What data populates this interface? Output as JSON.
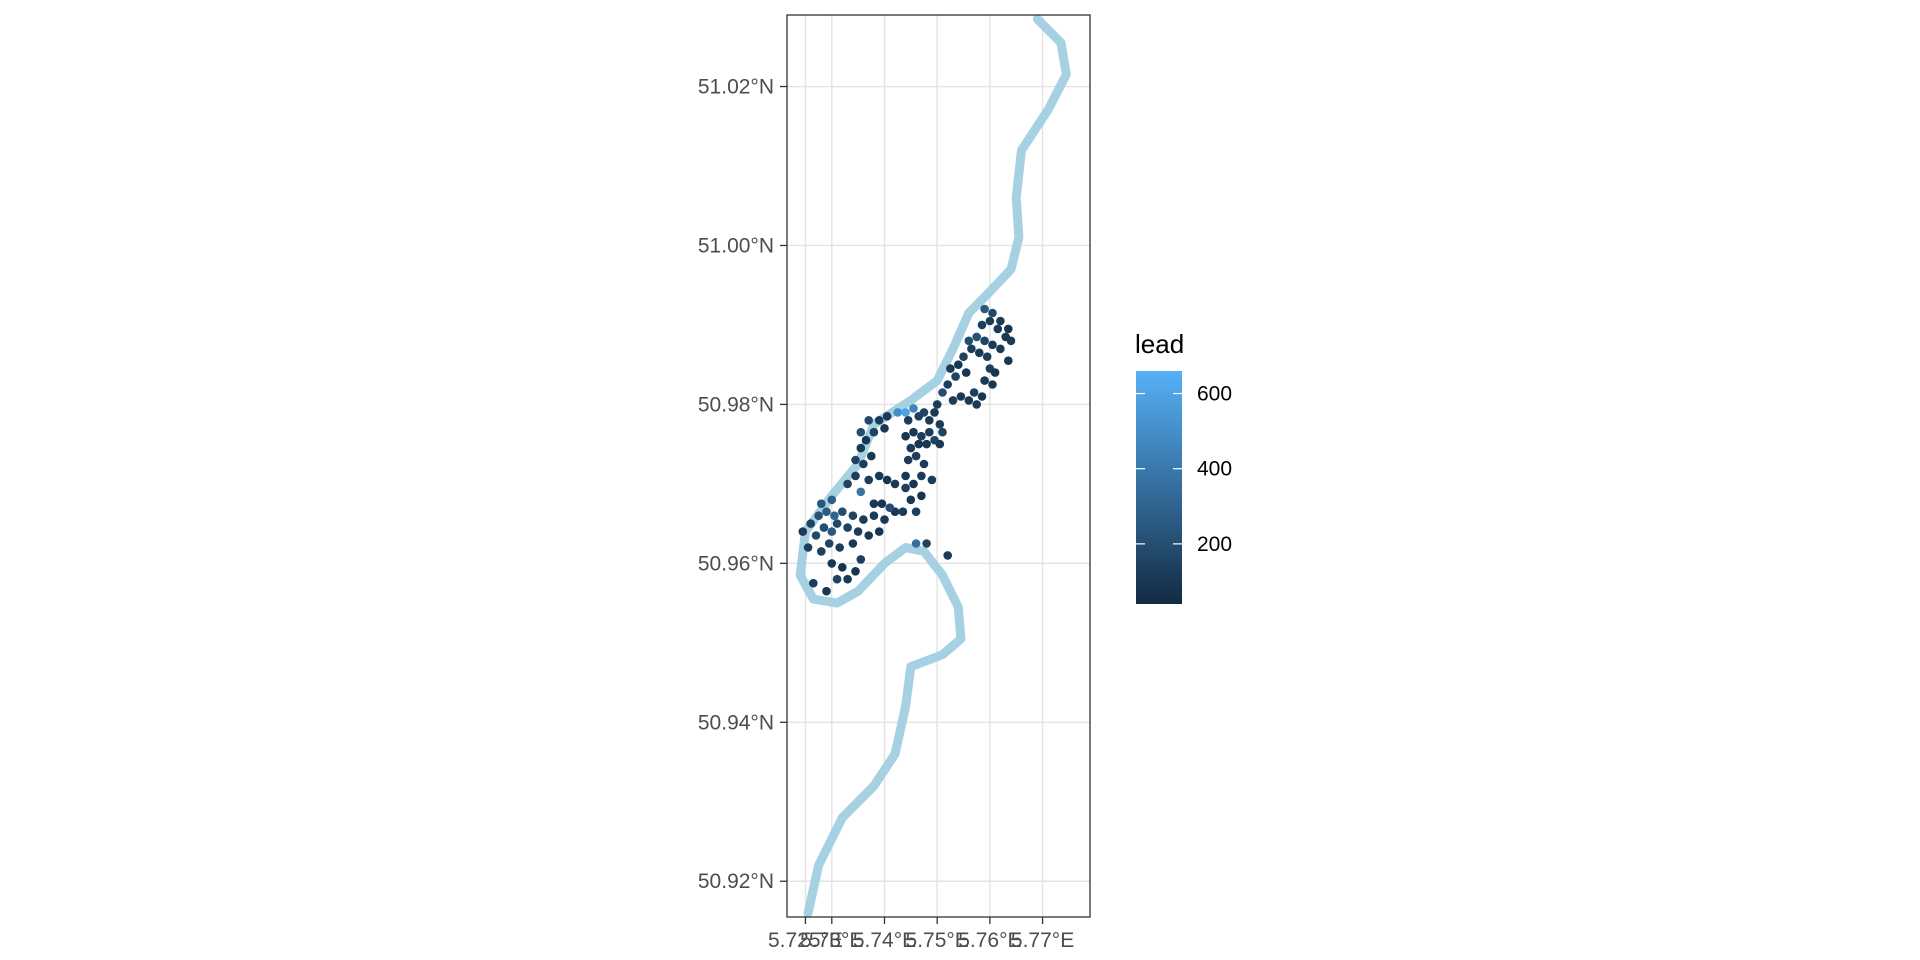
{
  "chart_data": {
    "type": "scatter",
    "title": "",
    "xlabel": "",
    "ylabel": "",
    "xlim": [
      5.7215,
      5.779
    ],
    "ylim": [
      50.9155,
      51.029
    ],
    "x_ticks": [
      5.725,
      5.73,
      5.74,
      5.75,
      5.76,
      5.77
    ],
    "x_tick_labels": [
      "5.725°E",
      "5.73°E",
      "5.74°E",
      "5.75°E",
      "5.76°E",
      "5.77°E"
    ],
    "y_ticks": [
      50.92,
      50.94,
      50.96,
      50.98,
      51.0,
      51.02
    ],
    "y_tick_labels": [
      "50.92°N",
      "50.94°N",
      "50.96°N",
      "50.98°N",
      "51.00°N",
      "51.02°N"
    ],
    "grid": true,
    "river_color": "#a6d1e3",
    "river": [
      [
        5.769,
        51.0285
      ],
      [
        5.7735,
        51.0255
      ],
      [
        5.7745,
        51.0215
      ],
      [
        5.771,
        51.017
      ],
      [
        5.766,
        51.012
      ],
      [
        5.765,
        51.006
      ],
      [
        5.7655,
        51.001
      ],
      [
        5.764,
        50.997
      ],
      [
        5.759,
        50.9935
      ],
      [
        5.756,
        50.9915
      ],
      [
        5.753,
        50.987
      ],
      [
        5.75,
        50.983
      ],
      [
        5.745,
        50.9805
      ],
      [
        5.738,
        50.9775
      ],
      [
        5.735,
        50.9725
      ],
      [
        5.73,
        50.9685
      ],
      [
        5.725,
        50.964
      ],
      [
        5.724,
        50.9585
      ],
      [
        5.7265,
        50.9555
      ],
      [
        5.731,
        50.955
      ],
      [
        5.735,
        50.9565
      ],
      [
        5.74,
        50.96
      ],
      [
        5.744,
        50.962
      ],
      [
        5.7475,
        50.9615
      ],
      [
        5.751,
        50.9585
      ],
      [
        5.754,
        50.9545
      ],
      [
        5.7545,
        50.9505
      ],
      [
        5.751,
        50.9485
      ],
      [
        5.745,
        50.947
      ],
      [
        5.744,
        50.942
      ],
      [
        5.742,
        50.936
      ],
      [
        5.738,
        50.932
      ],
      [
        5.732,
        50.928
      ],
      [
        5.7275,
        50.922
      ],
      [
        5.7255,
        50.916
      ]
    ],
    "legend": {
      "title": "lead",
      "position": "right",
      "min": 40,
      "max": 660,
      "ticks": [
        200,
        400,
        600
      ],
      "low_color": "#132b43",
      "high_color": "#56b1f7"
    },
    "points": [
      [
        5.7265,
        50.9575,
        120
      ],
      [
        5.729,
        50.9565,
        95
      ],
      [
        5.731,
        50.958,
        150
      ],
      [
        5.732,
        50.9595,
        80
      ],
      [
        5.733,
        50.958,
        110
      ],
      [
        5.7345,
        50.959,
        90
      ],
      [
        5.7355,
        50.9605,
        130
      ],
      [
        5.73,
        50.96,
        100
      ],
      [
        5.728,
        50.9615,
        140
      ],
      [
        5.7295,
        50.9625,
        160
      ],
      [
        5.7315,
        50.962,
        120
      ],
      [
        5.734,
        50.9625,
        100
      ],
      [
        5.7255,
        50.962,
        130
      ],
      [
        5.727,
        50.9635,
        170
      ],
      [
        5.7245,
        50.964,
        110
      ],
      [
        5.726,
        50.965,
        150
      ],
      [
        5.7285,
        50.9645,
        200
      ],
      [
        5.73,
        50.964,
        250
      ],
      [
        5.731,
        50.965,
        180
      ],
      [
        5.733,
        50.9645,
        140
      ],
      [
        5.735,
        50.964,
        120
      ],
      [
        5.737,
        50.9635,
        100
      ],
      [
        5.739,
        50.964,
        90
      ],
      [
        5.7275,
        50.966,
        220
      ],
      [
        5.729,
        50.9665,
        260
      ],
      [
        5.7305,
        50.966,
        300
      ],
      [
        5.732,
        50.9665,
        200
      ],
      [
        5.734,
        50.966,
        150
      ],
      [
        5.736,
        50.9655,
        120
      ],
      [
        5.738,
        50.966,
        110
      ],
      [
        5.74,
        50.9655,
        100
      ],
      [
        5.742,
        50.9665,
        90
      ],
      [
        5.728,
        50.9675,
        240
      ],
      [
        5.73,
        50.968,
        280
      ],
      [
        5.733,
        50.97,
        150
      ],
      [
        5.7345,
        50.971,
        130
      ],
      [
        5.7355,
        50.969,
        380
      ],
      [
        5.737,
        50.9705,
        120
      ],
      [
        5.739,
        50.971,
        100
      ],
      [
        5.7405,
        50.9705,
        90
      ],
      [
        5.742,
        50.97,
        110
      ],
      [
        5.744,
        50.9695,
        130
      ],
      [
        5.738,
        50.9675,
        100
      ],
      [
        5.7395,
        50.9675,
        90
      ],
      [
        5.741,
        50.967,
        200
      ],
      [
        5.7435,
        50.9665,
        110
      ],
      [
        5.7345,
        50.973,
        150
      ],
      [
        5.736,
        50.9725,
        120
      ],
      [
        5.7375,
        50.9735,
        100
      ],
      [
        5.7355,
        50.9745,
        110
      ],
      [
        5.7365,
        50.9755,
        90
      ],
      [
        5.738,
        50.9765,
        150
      ],
      [
        5.7355,
        50.9765,
        200
      ],
      [
        5.737,
        50.978,
        180
      ],
      [
        5.739,
        50.978,
        120
      ],
      [
        5.74,
        50.977,
        100
      ],
      [
        5.7405,
        50.9785,
        110
      ],
      [
        5.7425,
        50.979,
        500
      ],
      [
        5.744,
        50.979,
        600
      ],
      [
        5.7455,
        50.9795,
        450
      ],
      [
        5.7445,
        50.978,
        120
      ],
      [
        5.7465,
        50.9785,
        130
      ],
      [
        5.7475,
        50.979,
        150
      ],
      [
        5.7485,
        50.978,
        110
      ],
      [
        5.7495,
        50.979,
        100
      ],
      [
        5.744,
        50.976,
        90
      ],
      [
        5.7455,
        50.9765,
        100
      ],
      [
        5.747,
        50.976,
        130
      ],
      [
        5.7485,
        50.9765,
        120
      ],
      [
        5.745,
        50.9745,
        110
      ],
      [
        5.7465,
        50.975,
        90
      ],
      [
        5.748,
        50.975,
        100
      ],
      [
        5.7495,
        50.9755,
        150
      ],
      [
        5.7445,
        50.973,
        120
      ],
      [
        5.746,
        50.9735,
        130
      ],
      [
        5.7475,
        50.9725,
        110
      ],
      [
        5.744,
        50.971,
        100
      ],
      [
        5.7455,
        50.97,
        90
      ],
      [
        5.747,
        50.971,
        120
      ],
      [
        5.749,
        50.9705,
        110
      ],
      [
        5.745,
        50.968,
        100
      ],
      [
        5.747,
        50.9685,
        90
      ],
      [
        5.746,
        50.9665,
        130
      ],
      [
        5.748,
        50.9625,
        150
      ],
      [
        5.746,
        50.9625,
        350
      ],
      [
        5.752,
        50.961,
        120
      ],
      [
        5.75,
        50.98,
        110
      ],
      [
        5.751,
        50.9815,
        200
      ],
      [
        5.752,
        50.9825,
        130
      ],
      [
        5.7535,
        50.9835,
        150
      ],
      [
        5.7525,
        50.9845,
        110
      ],
      [
        5.754,
        50.985,
        100
      ],
      [
        5.7555,
        50.984,
        90
      ],
      [
        5.753,
        50.9805,
        120
      ],
      [
        5.7545,
        50.981,
        100
      ],
      [
        5.756,
        50.9805,
        110
      ],
      [
        5.757,
        50.9815,
        130
      ],
      [
        5.7585,
        50.981,
        90
      ],
      [
        5.7575,
        50.98,
        110
      ],
      [
        5.755,
        50.986,
        140
      ],
      [
        5.7565,
        50.987,
        120
      ],
      [
        5.758,
        50.9865,
        100
      ],
      [
        5.7595,
        50.986,
        130
      ],
      [
        5.756,
        50.988,
        200
      ],
      [
        5.7575,
        50.9885,
        220
      ],
      [
        5.759,
        50.988,
        150
      ],
      [
        5.7605,
        50.9875,
        110
      ],
      [
        5.762,
        50.987,
        100
      ],
      [
        5.7585,
        50.99,
        130
      ],
      [
        5.76,
        50.9905,
        120
      ],
      [
        5.7615,
        50.9895,
        110
      ],
      [
        5.763,
        50.9885,
        100
      ],
      [
        5.7635,
        50.9895,
        90
      ],
      [
        5.759,
        50.992,
        250
      ],
      [
        5.7605,
        50.9915,
        180
      ],
      [
        5.762,
        50.9905,
        120
      ],
      [
        5.764,
        50.988,
        110
      ],
      [
        5.7635,
        50.9855,
        100
      ],
      [
        5.76,
        50.9845,
        130
      ],
      [
        5.761,
        50.984,
        90
      ],
      [
        5.759,
        50.983,
        110
      ],
      [
        5.7605,
        50.9825,
        100
      ],
      [
        5.7505,
        50.9775,
        120
      ],
      [
        5.751,
        50.9765,
        150
      ],
      [
        5.7505,
        50.975,
        110
      ]
    ]
  }
}
